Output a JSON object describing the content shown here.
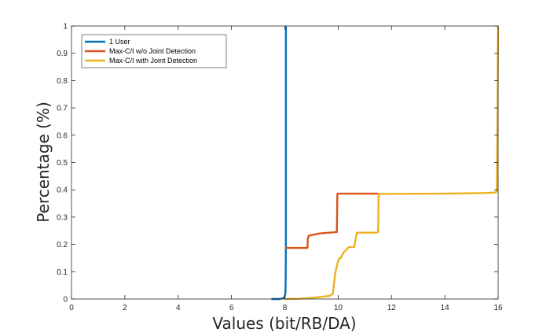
{
  "chart_data": {
    "type": "line",
    "title": "",
    "xlabel": "Values (bit/RB/DA)",
    "ylabel": "Percentage (%)",
    "xlim": [
      0,
      16
    ],
    "ylim": [
      0,
      1
    ],
    "x_ticks": [
      0,
      2,
      4,
      6,
      8,
      10,
      12,
      14,
      16
    ],
    "y_ticks": [
      0,
      0.1,
      0.2,
      0.3,
      0.4,
      0.5,
      0.6,
      0.7,
      0.8,
      0.9,
      1
    ],
    "x_tick_labels": [
      "0",
      "2",
      "4",
      "6",
      "8",
      "10",
      "12",
      "14",
      "16"
    ],
    "y_tick_labels": [
      "0",
      "0.1",
      "0.2",
      "0.3",
      "0.4",
      "0.5",
      "0.6",
      "0.7",
      "0.8",
      "0.9",
      "1"
    ],
    "grid": false,
    "legend_position": "top-left",
    "series": [
      {
        "name": "1 User",
        "color": "#0072BD",
        "x": [
          7.5,
          7.8,
          7.95,
          8.0,
          8.02,
          8.03,
          8.04,
          8.04
        ],
        "y": [
          0,
          0,
          0.003,
          0.01,
          0.02,
          0.05,
          0.2,
          1.0
        ]
      },
      {
        "name": "Max-C/I w/o Joint Detection",
        "color": "#D95319",
        "x": [
          8.0,
          8.85,
          8.86,
          8.9,
          9.1,
          9.3,
          9.95,
          9.97,
          10.0,
          11.5
        ],
        "y": [
          0.187,
          0.187,
          0.22,
          0.232,
          0.236,
          0.24,
          0.245,
          0.385,
          0.386,
          0.386
        ]
      },
      {
        "name": "Max-C/I with Joint Detection",
        "color": "#EDB120",
        "x": [
          8.0,
          8.5,
          9.0,
          9.4,
          9.7,
          9.8,
          9.85,
          9.9,
          9.95,
          10.0,
          10.05,
          10.1,
          10.2,
          10.3,
          10.4,
          10.6,
          10.65,
          10.7,
          11.4,
          11.5,
          11.52,
          12.0,
          14.0,
          15.5,
          15.9,
          15.95,
          16.0
        ],
        "y": [
          0,
          0.001,
          0.004,
          0.008,
          0.012,
          0.02,
          0.06,
          0.1,
          0.12,
          0.14,
          0.15,
          0.15,
          0.17,
          0.18,
          0.19,
          0.19,
          0.215,
          0.243,
          0.243,
          0.245,
          0.385,
          0.385,
          0.386,
          0.388,
          0.39,
          0.395,
          1.0
        ]
      }
    ]
  }
}
